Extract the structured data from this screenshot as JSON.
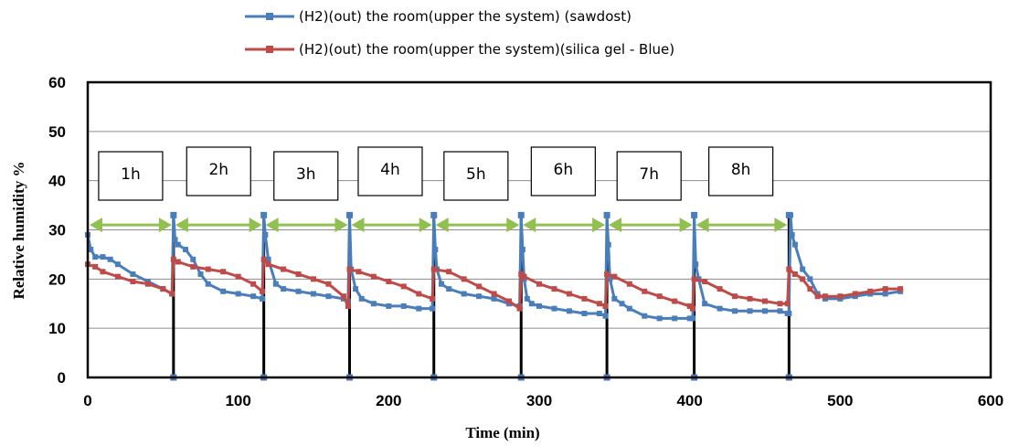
{
  "chart_data": {
    "type": "line",
    "xlabel": "Time (min)",
    "ylabel": "Relative humidity %",
    "xlim": [
      0,
      600
    ],
    "ylim": [
      0,
      60
    ],
    "x_ticks": [
      0,
      100,
      200,
      300,
      400,
      500,
      600
    ],
    "y_ticks": [
      0,
      10,
      20,
      30,
      40,
      50,
      60
    ],
    "grid": "horizontal",
    "legend_position": "top",
    "series": [
      {
        "name": "(H2)(out) the room(upper  the system) (sawdost)",
        "color": "#4a7ebb",
        "x": [
          0,
          2,
          5,
          10,
          15,
          20,
          30,
          40,
          50,
          56,
          57,
          58,
          60,
          65,
          70,
          75,
          80,
          90,
          100,
          110,
          116,
          117,
          118,
          120,
          125,
          130,
          140,
          150,
          160,
          170,
          173,
          174,
          175,
          178,
          182,
          190,
          200,
          210,
          220,
          229,
          230,
          231,
          232,
          235,
          240,
          250,
          260,
          270,
          280,
          287,
          288,
          289,
          290,
          292,
          295,
          300,
          310,
          320,
          330,
          340,
          344,
          345,
          346,
          347,
          350,
          355,
          360,
          370,
          380,
          390,
          400,
          402,
          403,
          404,
          406,
          410,
          420,
          430,
          440,
          450,
          460,
          465,
          466,
          467,
          468,
          470,
          475,
          480,
          485,
          490,
          500,
          510,
          520,
          530,
          540
        ],
        "values": [
          29,
          26,
          24.5,
          24.5,
          24,
          23,
          21,
          19.5,
          18,
          17,
          33,
          28,
          27,
          26,
          24,
          21,
          19,
          17.5,
          17,
          16.5,
          16,
          33,
          29,
          24,
          19,
          18,
          17.5,
          17,
          16.5,
          16,
          15.5,
          33,
          22,
          18,
          16,
          15,
          14.5,
          14.5,
          14,
          14,
          33,
          26,
          22,
          19,
          18,
          17,
          16.5,
          16,
          15,
          14.5,
          33,
          26,
          20,
          16,
          15,
          14.5,
          14,
          13.5,
          13,
          13,
          12.5,
          33,
          27,
          20,
          16,
          15,
          14,
          12.5,
          12,
          12,
          12,
          12,
          33,
          23,
          20,
          15,
          14,
          13.5,
          13.5,
          13.5,
          13.5,
          13,
          13,
          33,
          29,
          27,
          22,
          20,
          17,
          16,
          16,
          16.5,
          17,
          17,
          17.5
        ]
      },
      {
        "name": "(H2)(out) the room(upper the system)(silica gel - Blue)",
        "color": "#be4b48",
        "x": [
          0,
          5,
          10,
          20,
          30,
          40,
          50,
          56,
          57,
          60,
          70,
          80,
          90,
          100,
          110,
          116,
          117,
          120,
          130,
          140,
          150,
          160,
          170,
          173,
          174,
          180,
          190,
          200,
          210,
          220,
          229,
          230,
          240,
          250,
          260,
          270,
          280,
          287,
          288,
          290,
          300,
          310,
          320,
          330,
          340,
          344,
          345,
          350,
          360,
          370,
          380,
          390,
          400,
          402,
          403,
          410,
          420,
          430,
          440,
          450,
          460,
          465,
          466,
          470,
          475,
          480,
          485,
          490,
          500,
          510,
          520,
          530,
          540
        ],
        "values": [
          23,
          22.5,
          21.5,
          20.5,
          19.5,
          19,
          18,
          17,
          24,
          23.5,
          22.5,
          22,
          21.5,
          20.5,
          19,
          17.5,
          24,
          23,
          22,
          21,
          20,
          19,
          16.5,
          14.5,
          22,
          21.5,
          20.5,
          19.5,
          18.5,
          17,
          16,
          22,
          21.5,
          20,
          18.5,
          17,
          15.5,
          14,
          21,
          20.5,
          19,
          18,
          17,
          16,
          15,
          14.5,
          21,
          20.5,
          19,
          17.5,
          16.5,
          15.5,
          14.5,
          14,
          20,
          19.5,
          18,
          16.5,
          16,
          15.5,
          15,
          15,
          22,
          21,
          20,
          18,
          16.5,
          16.5,
          16.5,
          17,
          17.5,
          18,
          18
        ]
      }
    ],
    "annotations": [
      {
        "label": "1h",
        "x": 28.5
      },
      {
        "label": "2h",
        "x": 87
      },
      {
        "label": "3h",
        "x": 145
      },
      {
        "label": "4h",
        "x": 201
      },
      {
        "label": "5h",
        "x": 258
      },
      {
        "label": "6h",
        "x": 316
      },
      {
        "label": "7h",
        "x": 373
      },
      {
        "label": "8h",
        "x": 434
      }
    ],
    "interval_markers_x": [
      57,
      117,
      174,
      230,
      288,
      345,
      403,
      466
    ],
    "arrow_y": 31,
    "arrow_color": "#92c050"
  }
}
